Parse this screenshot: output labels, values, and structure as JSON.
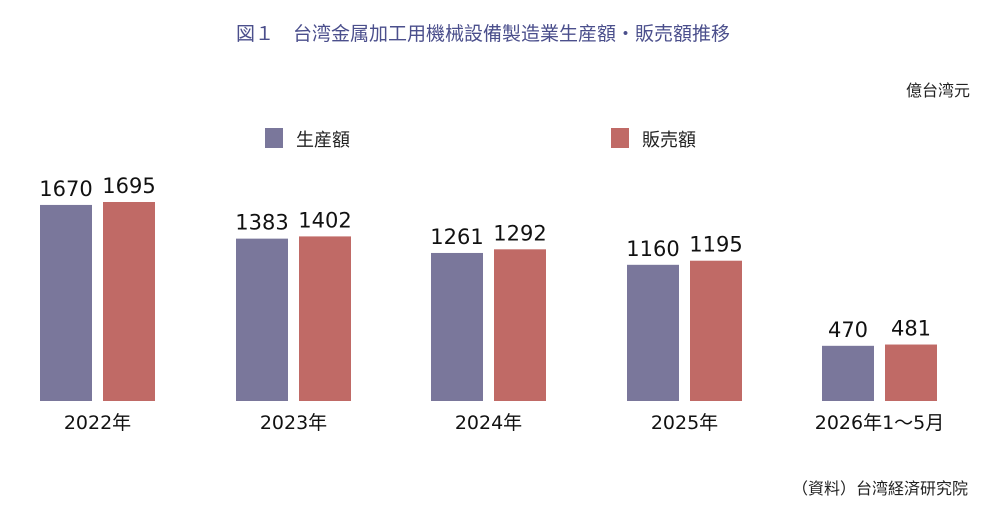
{
  "chart_data": {
    "type": "bar",
    "title": "図１　台湾金属加工用機械設備製造業生産額・販売額推移",
    "unit": "億台湾元",
    "source": "（資料）台湾経済研究院",
    "categories": [
      "2022年",
      "2023年",
      "2024年",
      "2025年",
      "2026年1～5月"
    ],
    "series": [
      {
        "name": "生産額",
        "color": "#7a779b",
        "values": [
          1670,
          1383,
          1261,
          1160,
          470
        ]
      },
      {
        "name": "販売額",
        "color": "#c06a66",
        "values": [
          1695,
          1402,
          1292,
          1195,
          481
        ]
      }
    ],
    "ylim": [
      0,
      1800
    ],
    "grid": false,
    "legend": "top-center"
  }
}
